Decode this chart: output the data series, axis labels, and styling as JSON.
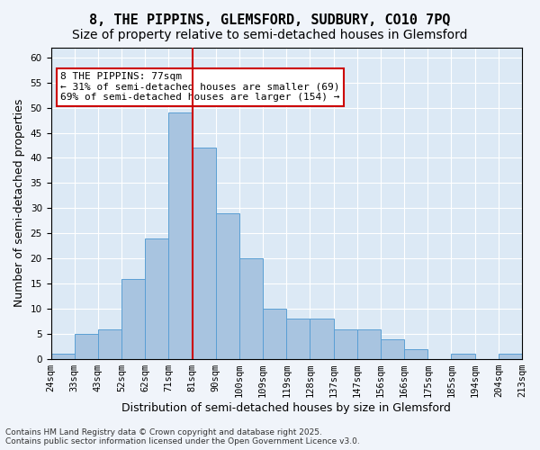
{
  "title1": "8, THE PIPPINS, GLEMSFORD, SUDBURY, CO10 7PQ",
  "title2": "Size of property relative to semi-detached houses in Glemsford",
  "xlabel": "Distribution of semi-detached houses by size in Glemsford",
  "ylabel": "Number of semi-detached properties",
  "bin_labels": [
    "24sqm",
    "33sqm",
    "43sqm",
    "52sqm",
    "62sqm",
    "71sqm",
    "81sqm",
    "90sqm",
    "100sqm",
    "109sqm",
    "119sqm",
    "128sqm",
    "137sqm",
    "147sqm",
    "156sqm",
    "166sqm",
    "175sqm",
    "185sqm",
    "194sqm",
    "204sqm",
    "213sqm"
  ],
  "counts": [
    1,
    5,
    6,
    16,
    24,
    49,
    42,
    29,
    20,
    10,
    8,
    8,
    6,
    6,
    4,
    2,
    0,
    1,
    0,
    1
  ],
  "bar_color": "#a8c4e0",
  "bar_edge_color": "#5a9fd4",
  "property_bin_index": 5,
  "vline_color": "#cc0000",
  "annotation_text": "8 THE PIPPINS: 77sqm\n← 31% of semi-detached houses are smaller (69)\n69% of semi-detached houses are larger (154) →",
  "annotation_box_color": "#ffffff",
  "annotation_box_edge": "#cc0000",
  "ylim": [
    0,
    62
  ],
  "yticks": [
    0,
    5,
    10,
    15,
    20,
    25,
    30,
    35,
    40,
    45,
    50,
    55,
    60
  ],
  "background_color": "#dce9f5",
  "grid_color": "#ffffff",
  "footer": "Contains HM Land Registry data © Crown copyright and database right 2025.\nContains public sector information licensed under the Open Government Licence v3.0.",
  "title1_fontsize": 11,
  "title2_fontsize": 10,
  "xlabel_fontsize": 9,
  "ylabel_fontsize": 9,
  "tick_fontsize": 7.5,
  "annotation_fontsize": 8
}
